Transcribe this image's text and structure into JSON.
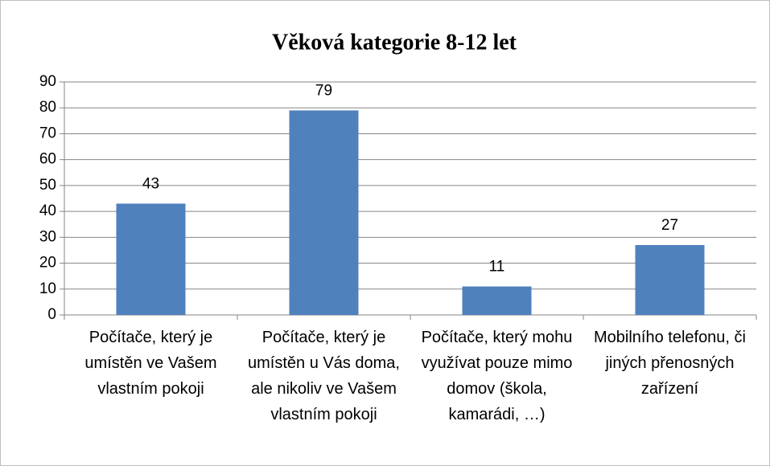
{
  "chart_data": {
    "type": "bar",
    "title": "Věková kategorie 8-12 let",
    "categories": [
      "Počítače, který je umístěn ve Vašem vlastním pokoji",
      "Počítače, který je umístěn u Vás doma, ale nikoliv ve Vašem vlastním pokoji",
      "Počítače, který mohu využívat pouze mimo domov (škola, kamarádi, …)",
      "Mobilního telefonu, či jiných přenosných zařízení"
    ],
    "values": [
      43,
      79,
      11,
      27
    ],
    "color": "#4f81bd",
    "ylim": [
      0,
      90
    ],
    "yticks": [
      0,
      10,
      20,
      30,
      40,
      50,
      60,
      70,
      80,
      90
    ],
    "grid": true
  }
}
